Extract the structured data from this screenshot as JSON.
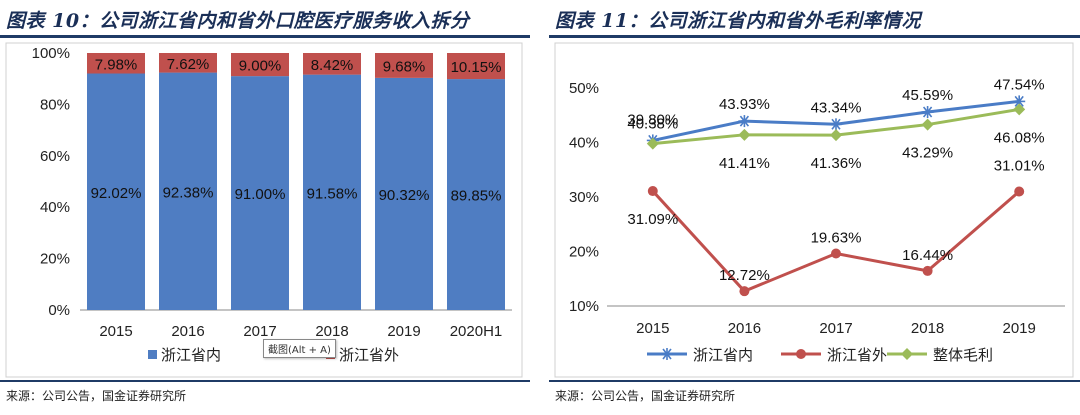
{
  "left": {
    "title": "图表 10：公司浙江省内和省外口腔医疗服务收入拆分",
    "source": "来源：公司公告，国金证券研究所"
  },
  "right": {
    "title": "图表 11：公司浙江省内和省外毛利率情况",
    "source": "来源：公司公告，国金证券研究所"
  },
  "tooltip": "截图(Alt + A)",
  "chart_data": [
    {
      "type": "bar",
      "stacked": true,
      "categories": [
        "2015",
        "2016",
        "2017",
        "2018",
        "2019",
        "2020H1"
      ],
      "series": [
        {
          "name": "浙江省内",
          "color": "#4f7dc2",
          "values": [
            92.02,
            92.38,
            91.0,
            91.58,
            90.32,
            89.85
          ],
          "labels": [
            "92.02%",
            "92.38%",
            "91.00%",
            "91.58%",
            "90.32%",
            "89.85%"
          ]
        },
        {
          "name": "浙江省外",
          "color": "#c0504d",
          "values": [
            7.98,
            7.62,
            9.0,
            8.42,
            9.68,
            10.15
          ],
          "labels": [
            "7.98%",
            "7.62%",
            "9.00%",
            "8.42%",
            "9.68%",
            "10.15%"
          ]
        }
      ],
      "yticks": [
        "0%",
        "20%",
        "40%",
        "60%",
        "80%",
        "100%"
      ],
      "ylim": [
        0,
        100
      ],
      "grid": false,
      "legend": "bottom"
    },
    {
      "type": "line",
      "categories": [
        "2015",
        "2016",
        "2017",
        "2018",
        "2019"
      ],
      "series": [
        {
          "name": "浙江省内",
          "color": "#4a7cc6",
          "marker": "star",
          "values": [
            40.38,
            43.93,
            43.34,
            45.59,
            47.54
          ],
          "labels": [
            "40.38%",
            "43.93%",
            "43.34%",
            "45.59%",
            "47.54%"
          ]
        },
        {
          "name": "浙江省外",
          "color": "#c0504d",
          "marker": "circle",
          "values": [
            31.09,
            12.72,
            19.63,
            16.44,
            31.01
          ],
          "labels": [
            "31.09%",
            "12.72%",
            "19.63%",
            "16.44%",
            "31.01%"
          ]
        },
        {
          "name": "整体毛利",
          "color": "#9bbb59",
          "marker": "diamond",
          "values": [
            39.8,
            41.41,
            41.36,
            43.29,
            46.08
          ],
          "labels": [
            "39.80%",
            "41.41%",
            "41.36%",
            "43.29%",
            "46.08%"
          ]
        }
      ],
      "yticks": [
        "10%",
        "20%",
        "30%",
        "40%",
        "50%"
      ],
      "ylim": [
        10,
        50
      ],
      "grid": false,
      "legend": "bottom"
    }
  ]
}
